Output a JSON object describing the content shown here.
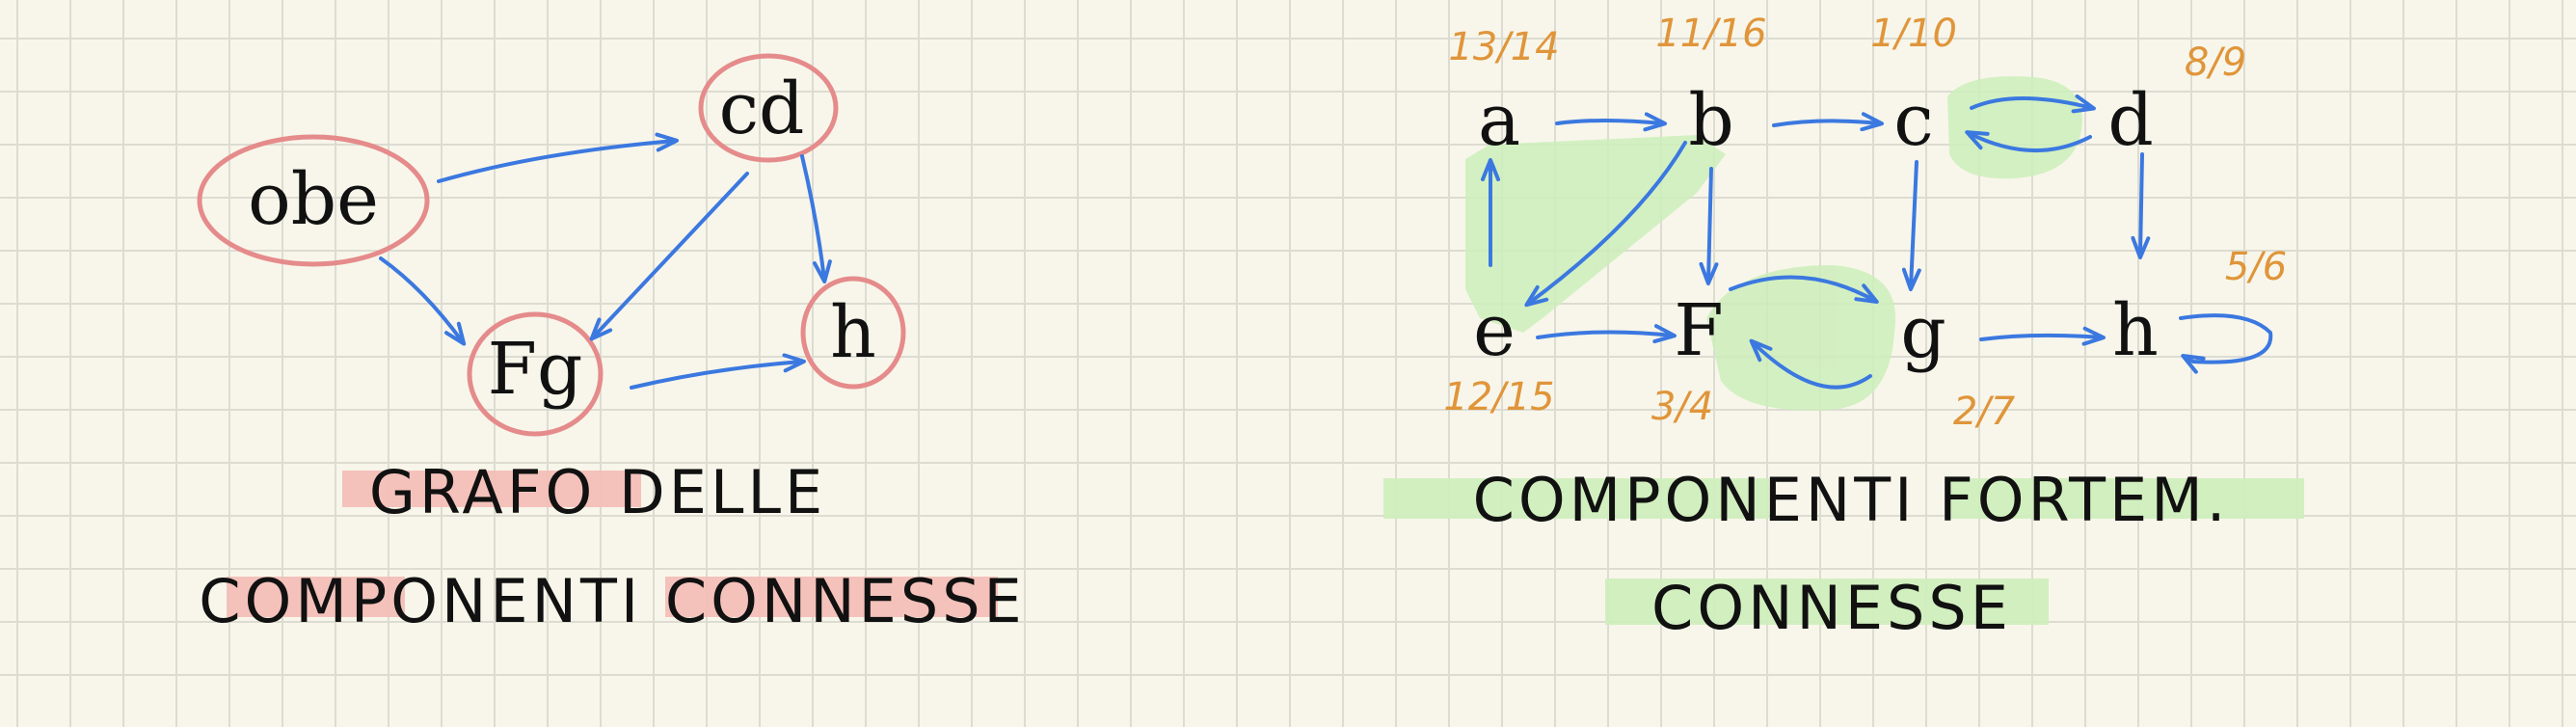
{
  "colors": {
    "paper": "#f8f6ea",
    "grid": "#dcdcd2",
    "arrow": "#3b78e0",
    "ink": "#111111",
    "scc_circle": "#e58b8b",
    "scc_circle_fill": "#f3bdb6",
    "scc_highlight": "#cdeebb",
    "timestamp": "#e0953a"
  },
  "left_diagram": {
    "nodes": [
      {
        "id": "obe",
        "label": "obe"
      },
      {
        "id": "cd",
        "label": "cd"
      },
      {
        "id": "fg",
        "label": "Fg"
      },
      {
        "id": "h",
        "label": "h"
      }
    ],
    "edges": [
      {
        "from": "obe",
        "to": "cd"
      },
      {
        "from": "obe",
        "to": "fg"
      },
      {
        "from": "cd",
        "to": "fg"
      },
      {
        "from": "cd",
        "to": "h"
      },
      {
        "from": "fg",
        "to": "h"
      }
    ],
    "caption_line1": "GRAFO DELLE",
    "caption_line2": "COMPONENTI CONNESSE"
  },
  "right_diagram": {
    "nodes": [
      {
        "id": "a",
        "label": "a",
        "time": "13/14"
      },
      {
        "id": "b",
        "label": "b",
        "time": "11/16"
      },
      {
        "id": "c",
        "label": "c",
        "time": "1/10"
      },
      {
        "id": "d",
        "label": "d",
        "time": "8/9"
      },
      {
        "id": "e",
        "label": "e",
        "time": "12/15"
      },
      {
        "id": "f",
        "label": "F",
        "time": "3/4"
      },
      {
        "id": "g",
        "label": "g",
        "time": "2/7"
      },
      {
        "id": "h",
        "label": "h",
        "time": "5/6"
      }
    ],
    "edges": [
      {
        "from": "a",
        "to": "b"
      },
      {
        "from": "b",
        "to": "c"
      },
      {
        "from": "c",
        "to": "d"
      },
      {
        "from": "d",
        "to": "c"
      },
      {
        "from": "e",
        "to": "a"
      },
      {
        "from": "b",
        "to": "e"
      },
      {
        "from": "b",
        "to": "f"
      },
      {
        "from": "c",
        "to": "g"
      },
      {
        "from": "d",
        "to": "h"
      },
      {
        "from": "e",
        "to": "f"
      },
      {
        "from": "f",
        "to": "g"
      },
      {
        "from": "g",
        "to": "f"
      },
      {
        "from": "g",
        "to": "h"
      },
      {
        "from": "h",
        "to": "h"
      }
    ],
    "caption_line1": "COMPONENTI FORTEM.",
    "caption_line2": "CONNESSE"
  }
}
